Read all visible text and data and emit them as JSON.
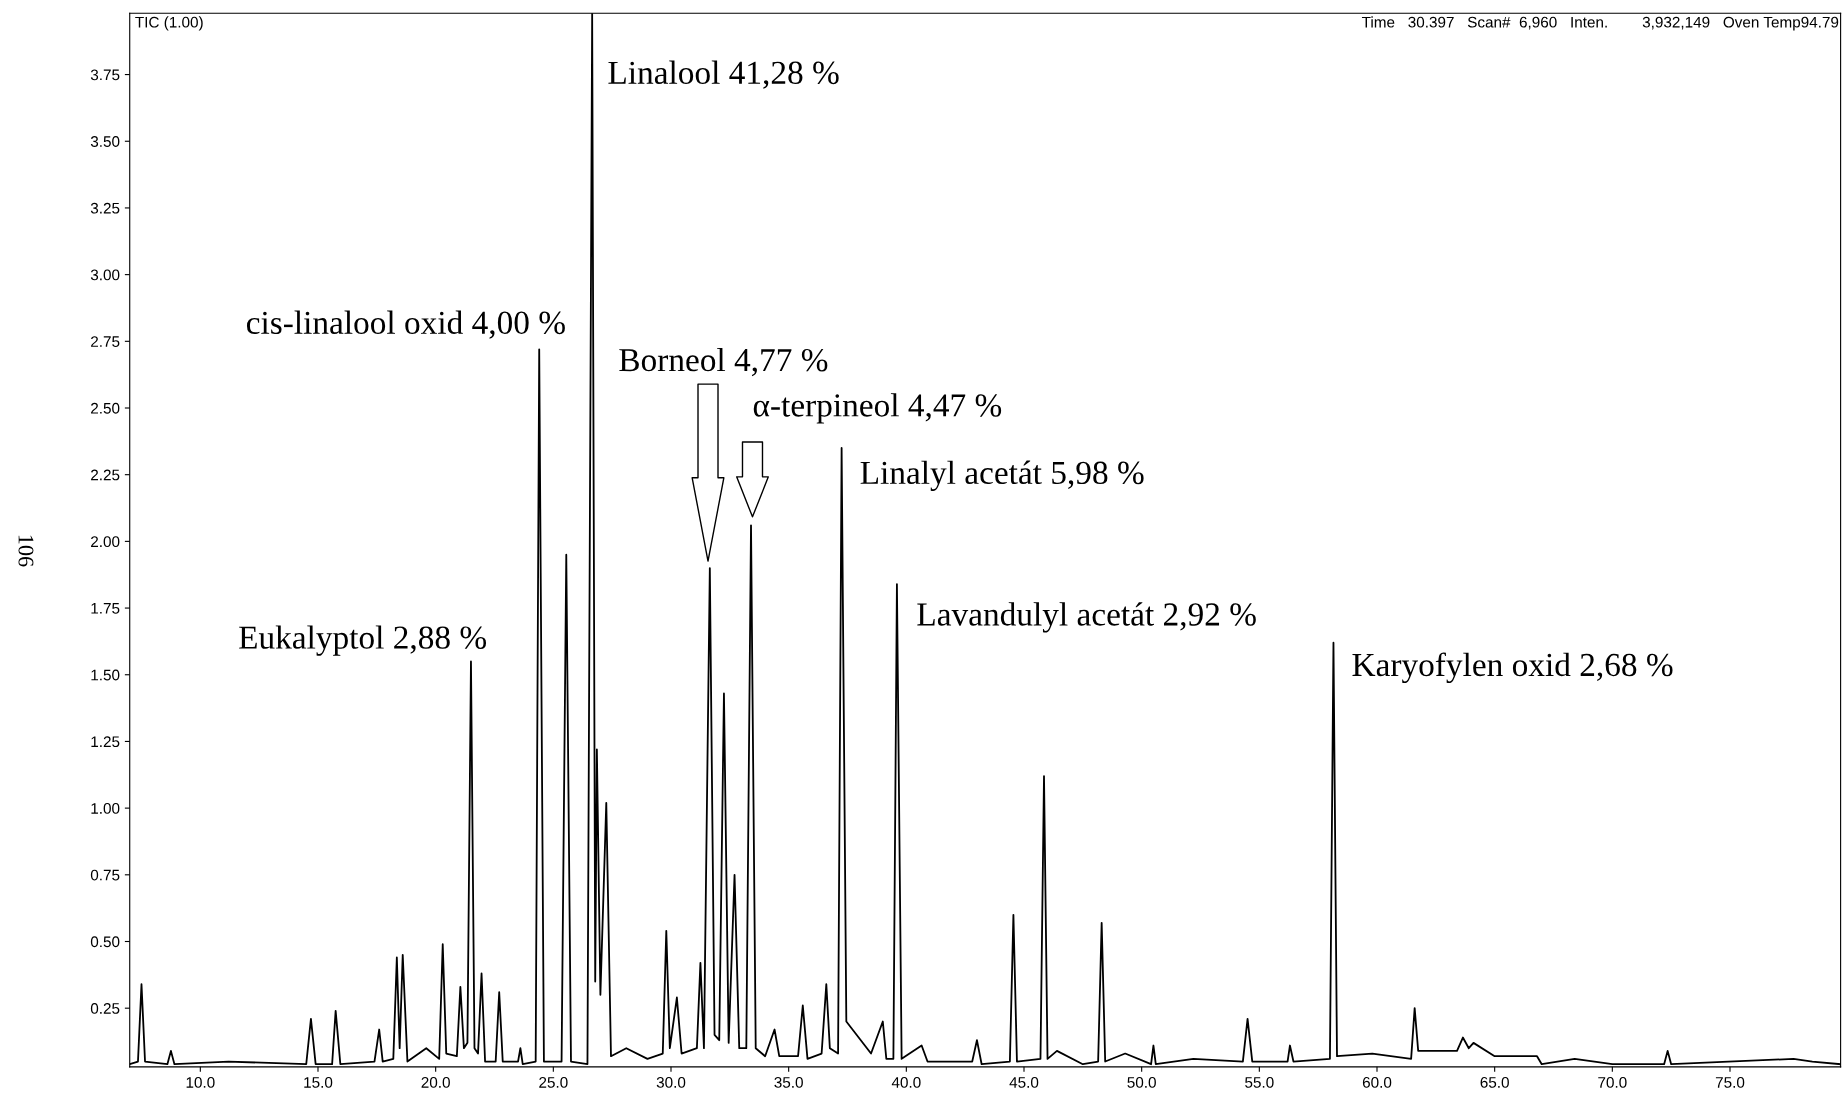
{
  "chart_data": {
    "type": "line",
    "color": "#000000",
    "line_style": "solid",
    "marker": "none",
    "grid": false,
    "legend": false,
    "x": [
      7.0,
      7.35,
      7.5,
      7.65,
      8.6,
      8.75,
      8.9,
      11.2,
      14.5,
      14.7,
      14.9,
      15.6,
      15.75,
      15.95,
      17.4,
      17.6,
      17.75,
      18.2,
      18.35,
      18.47,
      18.6,
      18.8,
      19.6,
      20.15,
      20.3,
      20.45,
      20.9,
      21.05,
      21.2,
      21.35,
      21.5,
      21.65,
      21.8,
      21.95,
      22.1,
      22.55,
      22.7,
      22.85,
      23.5,
      23.6,
      23.7,
      24.25,
      24.4,
      24.6,
      25.35,
      25.55,
      25.75,
      26.45,
      26.65,
      26.78,
      26.85,
      27.0,
      27.25,
      27.45,
      28.1,
      29.0,
      29.65,
      29.8,
      29.95,
      30.25,
      30.45,
      31.1,
      31.25,
      31.4,
      31.65,
      31.85,
      32.05,
      32.25,
      32.45,
      32.7,
      32.9,
      33.2,
      33.4,
      33.6,
      34.0,
      34.4,
      34.6,
      35.4,
      35.6,
      35.8,
      36.4,
      36.6,
      36.75,
      37.1,
      37.25,
      37.45,
      38.5,
      39.0,
      39.15,
      39.45,
      39.6,
      39.8,
      40.65,
      40.9,
      42.8,
      43.0,
      43.2,
      44.4,
      44.55,
      44.7,
      45.7,
      45.85,
      46.0,
      46.4,
      47.5,
      48.15,
      48.3,
      48.45,
      49.3,
      50.4,
      50.5,
      50.6,
      52.2,
      54.3,
      54.5,
      54.7,
      56.2,
      56.3,
      56.45,
      58.0,
      58.15,
      58.3,
      59.8,
      61.45,
      61.6,
      61.75,
      63.4,
      63.65,
      63.9,
      64.1,
      65.0,
      66.8,
      67.0,
      68.4,
      70.0,
      72.2,
      72.35,
      72.5,
      77.7,
      78.5,
      79.7
    ],
    "values": [
      0.04,
      0.05,
      0.34,
      0.05,
      0.04,
      0.09,
      0.04,
      0.05,
      0.04,
      0.21,
      0.04,
      0.04,
      0.24,
      0.04,
      0.05,
      0.17,
      0.05,
      0.06,
      0.44,
      0.1,
      0.45,
      0.05,
      0.1,
      0.06,
      0.49,
      0.08,
      0.07,
      0.33,
      0.1,
      0.12,
      1.55,
      0.1,
      0.08,
      0.38,
      0.05,
      0.05,
      0.31,
      0.05,
      0.05,
      0.1,
      0.04,
      0.05,
      2.72,
      0.05,
      0.05,
      1.95,
      0.05,
      0.04,
      3.98,
      0.35,
      1.22,
      0.3,
      1.02,
      0.07,
      0.1,
      0.06,
      0.08,
      0.54,
      0.1,
      0.29,
      0.08,
      0.1,
      0.42,
      0.1,
      1.9,
      0.15,
      0.13,
      1.43,
      0.12,
      0.75,
      0.1,
      0.1,
      2.06,
      0.1,
      0.07,
      0.17,
      0.07,
      0.07,
      0.26,
      0.06,
      0.08,
      0.34,
      0.1,
      0.08,
      2.35,
      0.2,
      0.08,
      0.2,
      0.06,
      0.06,
      1.84,
      0.06,
      0.11,
      0.05,
      0.05,
      0.13,
      0.04,
      0.05,
      0.6,
      0.05,
      0.06,
      1.12,
      0.06,
      0.09,
      0.04,
      0.05,
      0.57,
      0.05,
      0.08,
      0.04,
      0.11,
      0.04,
      0.06,
      0.05,
      0.21,
      0.05,
      0.05,
      0.11,
      0.05,
      0.06,
      1.62,
      0.07,
      0.08,
      0.06,
      0.25,
      0.09,
      0.09,
      0.14,
      0.1,
      0.12,
      0.07,
      0.07,
      0.04,
      0.06,
      0.04,
      0.04,
      0.09,
      0.04,
      0.06,
      0.05,
      0.04
    ],
    "xlim": [
      7.0,
      79.7
    ],
    "ylim": [
      0.03,
      3.98
    ],
    "xticks": [
      {
        "value": 10,
        "label": "10.0"
      },
      {
        "value": 15,
        "label": "15.0"
      },
      {
        "value": 20,
        "label": "20.0"
      },
      {
        "value": 25,
        "label": "25.0"
      },
      {
        "value": 30,
        "label": "30.0"
      },
      {
        "value": 35,
        "label": "35.0"
      },
      {
        "value": 40,
        "label": "40.0"
      },
      {
        "value": 45,
        "label": "45.0"
      },
      {
        "value": 50,
        "label": "50.0"
      },
      {
        "value": 55,
        "label": "55.0"
      },
      {
        "value": 60,
        "label": "60.0"
      },
      {
        "value": 65,
        "label": "65.0"
      },
      {
        "value": 70,
        "label": "70.0"
      },
      {
        "value": 75,
        "label": "75.0"
      }
    ],
    "yticks": [
      0.25,
      {
        "value": 0.5,
        "label": "0.50"
      },
      0.75,
      {
        "value": 1.0,
        "label": "1.00"
      },
      1.25,
      {
        "value": 1.5,
        "label": "1.50"
      },
      1.75,
      {
        "value": 2.0,
        "label": "2.00"
      },
      2.25,
      {
        "value": 2.5,
        "label": "2.50"
      },
      2.75,
      {
        "value": 3.0,
        "label": "3.00"
      },
      3.25,
      {
        "value": 3.5,
        "label": "3.50"
      },
      3.75
    ],
    "annotations": [
      {
        "text": "Linalool 41,28 %",
        "x": 26.65,
        "y": 3.98
      },
      {
        "text": "cis-linalool oxid 4,00 %",
        "x": 24.4,
        "y": 2.72
      },
      {
        "text": "Eukalyptol 2,88 %",
        "x": 21.5,
        "y": 1.55
      },
      "Borneol 4,77 %",
      "α-terpineol 4,47 %",
      {
        "text": "Linalyl acetát 5,98 %",
        "x": 37.25,
        "y": 2.35
      },
      {
        "text": "Lavandulyl acetát 2,92 %",
        "x": 39.6,
        "y": 1.84
      },
      {
        "text": "Karyofylen oxid 2,68 %",
        "x": 58.15,
        "y": 1.62
      },
      "TIC (1.00)",
      "Time   30.397   Scan#  6,960   Inten.        3,932,149   Oven Temp94.79",
      "106"
    ]
  }
}
